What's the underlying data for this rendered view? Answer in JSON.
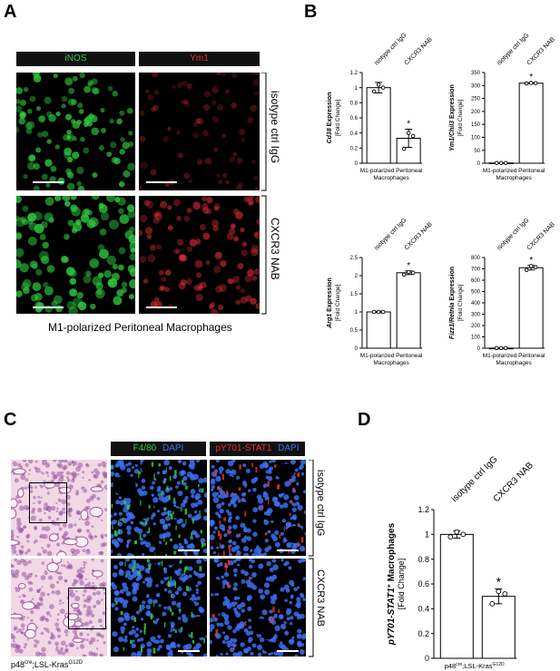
{
  "panels": {
    "a": "A",
    "b": "B",
    "c": "C",
    "d": "D"
  },
  "panel_a": {
    "channel_inos": "iNOS",
    "channel_ym1": "Ym1",
    "row1": "isotype ctrl IgG",
    "row2": "CXCR3 NAB",
    "caption": "M1-polarized Peritoneal Macrophages"
  },
  "panel_c": {
    "ch1_a": "F4/80",
    "ch1_b": "DAPI",
    "ch2_a": "pY701-STAT1",
    "ch2_b": "DAPI",
    "row1": "isotype ctrl IgG",
    "row2": "CXCR3 NAB",
    "genotype": "p48cre;LSL-KrasG12D"
  },
  "colors": {
    "inos": "#2ecc40",
    "ym1": "#e8303a",
    "dapi": "#3b6ff0",
    "f480": "#2ecc40",
    "stat1": "#e8303a"
  },
  "chart_data": [
    {
      "id": "cd38",
      "type": "bar",
      "categories": [
        "isotype ctrl IgG",
        "CXCR3 NAB"
      ],
      "values": [
        1.0,
        0.33
      ],
      "errors": [
        0.07,
        0.12
      ],
      "points": [
        [
          0.95,
          1.04,
          1.0
        ],
        [
          0.19,
          0.4,
          0.36
        ]
      ],
      "significance": [
        false,
        true
      ],
      "ylabel_gene": "Cd38",
      "ylabel_rest": " Expression",
      "ylabel_sub": "[Fold Change]",
      "xlabel": "M1-polarized Peritoneal Macrophages",
      "ylim": [
        0,
        1.2
      ],
      "yticks": [
        "0",
        "0.2",
        "0.4",
        "0.6",
        "0.8",
        "1",
        "1.2"
      ]
    },
    {
      "id": "ym1",
      "type": "bar",
      "categories": [
        "isotype ctrl IgG",
        "CXCR3 NAB"
      ],
      "values": [
        1.0,
        309
      ],
      "errors": [
        0.3,
        2
      ],
      "points": [
        [
          1,
          1,
          1
        ],
        [
          308,
          310,
          309
        ]
      ],
      "significance": [
        false,
        true
      ],
      "ylabel_gene": "Ym1/Chil3",
      "ylabel_rest": " Expression",
      "ylabel_sub": "[Fold Change]",
      "xlabel": "M1-polarized Peritoneal Macrophages",
      "ylim": [
        0,
        350
      ],
      "yticks": [
        "0",
        "50",
        "100",
        "150",
        "200",
        "250",
        "300",
        "350"
      ]
    },
    {
      "id": "arg1",
      "type": "bar",
      "categories": [
        "isotype ctrl IgG",
        "CXCR3 NAB"
      ],
      "values": [
        1.0,
        2.08
      ],
      "errors": [
        0.02,
        0.05
      ],
      "points": [
        [
          1,
          1,
          1
        ],
        [
          2.03,
          2.1,
          2.08
        ]
      ],
      "significance": [
        false,
        true
      ],
      "ylabel_gene": "Arg1",
      "ylabel_rest": " Expression",
      "ylabel_sub": "[Fold Change]",
      "xlabel": "M1-polarized Peritoneal Macrophages",
      "ylim": [
        0,
        2.5
      ],
      "yticks": [
        "0",
        "0.5",
        "1",
        "1.5",
        "2",
        "2.5"
      ]
    },
    {
      "id": "fizz1",
      "type": "bar",
      "categories": [
        "isotype ctrl IgG",
        "CXCR3 NAB"
      ],
      "values": [
        1.0,
        710
      ],
      "errors": [
        1,
        20
      ],
      "points": [
        [
          1,
          1,
          1
        ],
        [
          690,
          725,
          715
        ]
      ],
      "significance": [
        false,
        true
      ],
      "ylabel_gene": "Fizz1/Retnla",
      "ylabel_rest": " Expression",
      "ylabel_sub": "[Fold Change]",
      "xlabel": "M1-polarized Peritoneal Macrophages",
      "ylim": [
        0,
        800
      ],
      "yticks": [
        "0",
        "100",
        "200",
        "300",
        "400",
        "500",
        "600",
        "700",
        "800"
      ]
    },
    {
      "id": "stat1",
      "type": "bar",
      "categories": [
        "isotype ctrl IgG",
        "CXCR3 NAB"
      ],
      "values": [
        1.0,
        0.5
      ],
      "errors": [
        0.03,
        0.06
      ],
      "points": [
        [
          0.98,
          1.02,
          1.0
        ],
        [
          0.44,
          0.54,
          0.52
        ]
      ],
      "significance": [
        false,
        true
      ],
      "ylabel_gene": "pY701-STAT1",
      "ylabel_sup": "+",
      "ylabel_rest": " Macrophages",
      "ylabel_sub": "[Fold Change]",
      "xlabel": "p48cre;LSL-KrasG12D",
      "ylim": [
        0,
        1.2
      ],
      "yticks": [
        "0",
        "0.2",
        "0.4",
        "0.6",
        "0.8",
        "1",
        "1.2"
      ]
    }
  ]
}
